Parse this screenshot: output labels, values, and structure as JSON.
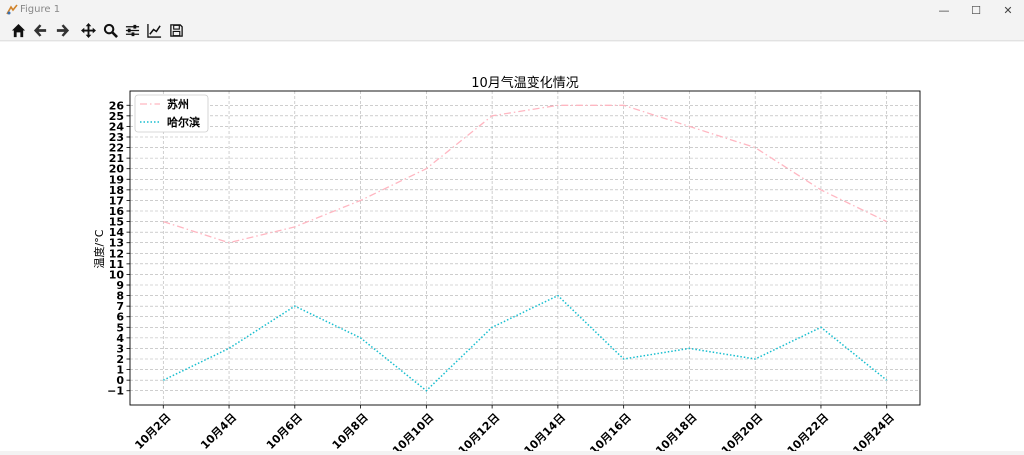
{
  "window": {
    "title": "Figure 1",
    "minimize_glyph": "—",
    "maximize_glyph": "☐",
    "close_glyph": "✕"
  },
  "toolbar": {
    "buttons": [
      {
        "name": "home-icon"
      },
      {
        "name": "back-arrow-icon"
      },
      {
        "name": "forward-arrow-icon"
      },
      {
        "name": "pan-move-icon"
      },
      {
        "name": "zoom-magnifier-icon"
      },
      {
        "name": "configure-subplots-icon"
      },
      {
        "name": "edit-axis-curve-icon"
      },
      {
        "name": "save-disk-icon"
      }
    ]
  },
  "colors": {
    "suzhou": "#ffb6c1",
    "harbin": "#17becf",
    "grid": "#b0b0b0"
  },
  "chart_data": {
    "type": "line",
    "title": "10月气温变化情况",
    "xlabel": "",
    "ylabel": "温度/°C",
    "categories": [
      "10月2日",
      "10月4日",
      "10月6日",
      "10月8日",
      "10月10日",
      "10月12日",
      "10月14日",
      "10月16日",
      "10月18日",
      "10月20日",
      "10月22日",
      "10月24日"
    ],
    "yticks": [
      -1,
      0,
      1,
      2,
      3,
      4,
      5,
      6,
      7,
      8,
      9,
      10,
      11,
      12,
      13,
      14,
      15,
      16,
      17,
      18,
      19,
      20,
      21,
      22,
      23,
      24,
      25,
      26
    ],
    "ylim": [
      -2.35,
      27.35
    ],
    "grid": true,
    "legend_position": "top-left",
    "series": [
      {
        "name": "苏州",
        "style": "dashdot",
        "values": [
          15,
          13,
          14.5,
          17,
          20,
          25,
          26,
          26,
          24,
          22,
          18,
          15
        ]
      },
      {
        "name": "哈尔滨",
        "style": "dotted",
        "values": [
          0,
          3,
          7,
          4,
          -1,
          5,
          8,
          2,
          3,
          2,
          5,
          0
        ]
      }
    ]
  }
}
